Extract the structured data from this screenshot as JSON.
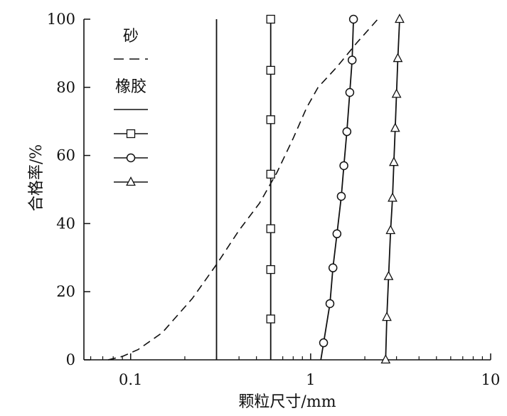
{
  "chart_data": {
    "type": "line",
    "title": "",
    "xlabel": "颗粒尺寸/mm",
    "ylabel": "合格率/%",
    "xscale": "log",
    "xlim": [
      0.055,
      10
    ],
    "ylim": [
      0,
      100
    ],
    "xticks": [
      0.1,
      1,
      10
    ],
    "xtick_labels": [
      "0.1",
      "1",
      "10"
    ],
    "yticks": [
      0,
      20,
      40,
      60,
      80,
      100
    ],
    "ytick_labels": [
      "0",
      "20",
      "40",
      "60",
      "80",
      "100"
    ],
    "grid": false,
    "legend": {
      "placement": "top-left",
      "groups": [
        {
          "title": "砂",
          "entries": [
            {
              "style": "dashed",
              "marker": "none"
            }
          ]
        },
        {
          "title": "橡胶",
          "entries": [
            {
              "style": "solid",
              "marker": "none"
            },
            {
              "style": "solid",
              "marker": "square"
            },
            {
              "style": "solid",
              "marker": "circle"
            },
            {
              "style": "solid",
              "marker": "triangle"
            }
          ]
        }
      ]
    },
    "series": [
      {
        "group": "砂",
        "style": "dashed",
        "marker": "none",
        "points": [
          [
            0.075,
            0
          ],
          [
            0.09,
            1
          ],
          [
            0.11,
            3
          ],
          [
            0.15,
            8
          ],
          [
            0.22,
            18
          ],
          [
            0.3,
            28
          ],
          [
            0.4,
            38
          ],
          [
            0.52,
            46
          ],
          [
            0.65,
            55
          ],
          [
            0.8,
            65
          ],
          [
            0.95,
            74
          ],
          [
            1.1,
            80
          ],
          [
            1.4,
            86
          ],
          [
            1.8,
            93
          ],
          [
            2.36,
            100
          ]
        ]
      },
      {
        "group": "橡胶",
        "style": "solid",
        "marker": "none",
        "points": [
          [
            0.3,
            0
          ],
          [
            0.3,
            100
          ]
        ]
      },
      {
        "group": "橡胶",
        "style": "solid",
        "marker": "square",
        "points": [
          [
            0.6,
            12
          ],
          [
            0.6,
            26.5
          ],
          [
            0.6,
            38.5
          ],
          [
            0.6,
            54.5
          ],
          [
            0.6,
            70.5
          ],
          [
            0.6,
            85
          ],
          [
            0.6,
            100
          ]
        ]
      },
      {
        "group": "橡胶",
        "style": "solid",
        "marker": "circle",
        "points": [
          [
            1.18,
            5
          ],
          [
            1.28,
            16.5
          ],
          [
            1.33,
            27
          ],
          [
            1.4,
            37
          ],
          [
            1.48,
            48
          ],
          [
            1.53,
            57
          ],
          [
            1.59,
            67
          ],
          [
            1.65,
            78.5
          ],
          [
            1.7,
            88
          ],
          [
            1.73,
            100
          ]
        ]
      },
      {
        "group": "橡胶",
        "style": "solid",
        "marker": "triangle",
        "points": [
          [
            2.61,
            0
          ],
          [
            2.65,
            12.5
          ],
          [
            2.71,
            24.5
          ],
          [
            2.78,
            38
          ],
          [
            2.85,
            47.5
          ],
          [
            2.9,
            58
          ],
          [
            2.95,
            68
          ],
          [
            3.0,
            78
          ],
          [
            3.05,
            88.5
          ],
          [
            3.12,
            100
          ]
        ]
      }
    ]
  }
}
